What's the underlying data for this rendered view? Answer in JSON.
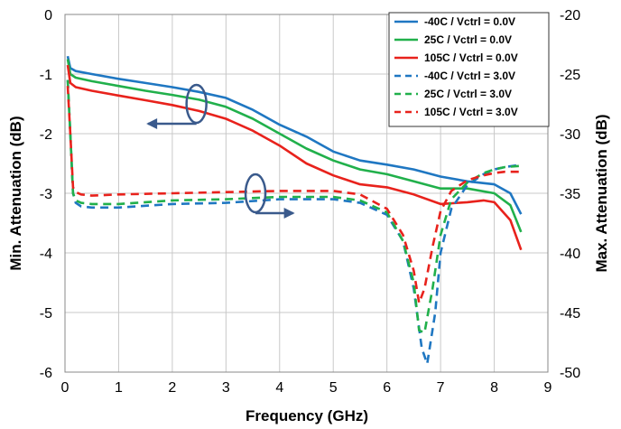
{
  "chart_data": {
    "type": "line",
    "xlabel": "Frequency  (GHz)",
    "ylabel_left": "Min. Attenuation (dB)",
    "ylabel_right": "Max. Attenuation (dB)",
    "xlim": [
      0,
      9
    ],
    "ylim_left": [
      -6,
      0
    ],
    "ylim_right": [
      -50,
      -20
    ],
    "x_ticks": [
      "0",
      "1",
      "2",
      "3",
      "4",
      "5",
      "6",
      "7",
      "8",
      "9"
    ],
    "y_ticks_left": [
      "0",
      "-1",
      "-2",
      "-3",
      "-4",
      "-5",
      "-6"
    ],
    "y_ticks_right": [
      "-20",
      "-25",
      "-30",
      "-35",
      "-40",
      "-45",
      "-50"
    ],
    "grid": true,
    "legend_position": "top-right",
    "series": [
      {
        "name": "-40C /  Vctrl = 0.0V",
        "axis": "left",
        "color": "#1f77c2",
        "dash": "solid",
        "x": [
          0.05,
          0.1,
          0.2,
          0.5,
          1,
          1.5,
          2,
          2.5,
          3,
          3.5,
          4,
          4.5,
          5,
          5.5,
          6,
          6.5,
          7,
          7.5,
          8,
          8.3,
          8.5
        ],
        "y": [
          -0.7,
          -0.9,
          -0.95,
          -1.0,
          -1.08,
          -1.15,
          -1.22,
          -1.3,
          -1.4,
          -1.6,
          -1.85,
          -2.05,
          -2.3,
          -2.45,
          -2.52,
          -2.6,
          -2.72,
          -2.8,
          -2.85,
          -3.0,
          -3.35
        ]
      },
      {
        "name": "25C /  Vctrl = 0.0V",
        "axis": "left",
        "color": "#21b04b",
        "dash": "solid",
        "x": [
          0.05,
          0.1,
          0.2,
          0.5,
          1,
          1.5,
          2,
          2.5,
          3,
          3.5,
          4,
          4.5,
          5,
          5.5,
          6,
          6.5,
          7,
          7.5,
          8,
          8.3,
          8.5
        ],
        "y": [
          -0.75,
          -1.0,
          -1.06,
          -1.12,
          -1.2,
          -1.28,
          -1.35,
          -1.43,
          -1.55,
          -1.75,
          -2.0,
          -2.25,
          -2.45,
          -2.6,
          -2.68,
          -2.8,
          -2.92,
          -2.92,
          -3.0,
          -3.2,
          -3.65
        ]
      },
      {
        "name": "105C /  Vctrl = 0.0V",
        "axis": "left",
        "color": "#e8221c",
        "dash": "solid",
        "x": [
          0.05,
          0.1,
          0.2,
          0.5,
          1,
          1.5,
          2,
          2.5,
          3,
          3.5,
          4,
          4.5,
          5,
          5.5,
          6,
          6.5,
          7,
          7.5,
          7.8,
          8,
          8.3,
          8.5
        ],
        "y": [
          -0.85,
          -1.15,
          -1.22,
          -1.28,
          -1.36,
          -1.44,
          -1.52,
          -1.62,
          -1.75,
          -1.95,
          -2.2,
          -2.5,
          -2.7,
          -2.85,
          -2.9,
          -3.02,
          -3.18,
          -3.15,
          -3.12,
          -3.15,
          -3.45,
          -3.95
        ]
      },
      {
        "name": "-40C /  Vctrl = 3.0V",
        "axis": "right",
        "color": "#1f77c2",
        "dash": "dashed",
        "x": [
          0.05,
          0.1,
          0.15,
          0.2,
          0.3,
          0.5,
          1,
          2,
          3,
          4,
          5,
          5.5,
          6,
          6.3,
          6.5,
          6.65,
          6.75,
          6.9,
          7.0,
          7.2,
          7.5,
          7.8,
          8.0,
          8.2,
          8.5
        ],
        "y": [
          -25.5,
          -30,
          -35,
          -35.8,
          -36.1,
          -36.2,
          -36.2,
          -35.9,
          -35.8,
          -35.5,
          -35.5,
          -35.8,
          -36.8,
          -39,
          -43,
          -48,
          -49.3,
          -45,
          -40,
          -36.3,
          -34.3,
          -33.4,
          -33.0,
          -32.8,
          -32.6
        ]
      },
      {
        "name": "25C /  Vctrl = 3.0V",
        "axis": "right",
        "color": "#21b04b",
        "dash": "dashed",
        "x": [
          0.05,
          0.1,
          0.15,
          0.2,
          0.3,
          0.5,
          1,
          2,
          3,
          4,
          5,
          5.5,
          6,
          6.3,
          6.5,
          6.6,
          6.7,
          6.85,
          7.0,
          7.2,
          7.5,
          7.8,
          8.0,
          8.2,
          8.5
        ],
        "y": [
          -25.5,
          -30,
          -35,
          -35.6,
          -35.8,
          -35.9,
          -35.9,
          -35.6,
          -35.5,
          -35.3,
          -35.3,
          -35.6,
          -36.6,
          -39,
          -42.5,
          -46.5,
          -46.7,
          -43,
          -38.5,
          -35.5,
          -34.1,
          -33.3,
          -33.0,
          -32.8,
          -32.7
        ]
      },
      {
        "name": "105C /  Vctrl = 3.0V",
        "axis": "right",
        "color": "#e8221c",
        "dash": "dashed",
        "x": [
          0.05,
          0.1,
          0.15,
          0.2,
          0.3,
          0.5,
          1,
          2,
          3,
          4,
          5,
          5.5,
          6,
          6.3,
          6.5,
          6.6,
          6.7,
          6.85,
          7.0,
          7.2,
          7.5,
          7.8,
          8.0,
          8.2,
          8.5
        ],
        "y": [
          -26,
          -30,
          -34.5,
          -34.9,
          -35.1,
          -35.2,
          -35.1,
          -35.0,
          -34.9,
          -34.8,
          -34.8,
          -35.1,
          -36.3,
          -38.5,
          -41.5,
          -44.2,
          -43.0,
          -39.5,
          -36.5,
          -34.8,
          -33.9,
          -33.5,
          -33.3,
          -33.2,
          -33.2
        ]
      }
    ],
    "annotations": [
      {
        "type": "ellipse-arrow",
        "target_axis": "left",
        "cx": 2.45,
        "cy_left": -1.5,
        "arrow_to_x": 1.55,
        "arrow_dir": "left"
      },
      {
        "type": "ellipse-arrow",
        "target_axis": "right",
        "cx": 3.55,
        "cy_left": -3.0,
        "arrow_to_x": 4.25,
        "arrow_dir": "right"
      }
    ]
  }
}
